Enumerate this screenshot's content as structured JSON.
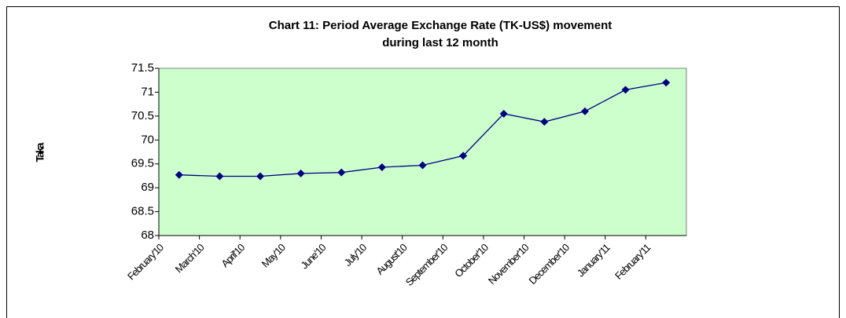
{
  "chart_data": {
    "type": "line",
    "title": [
      "Chart 11: Period Average Exchange Rate (TK-US$) movement",
      "during last 12 month"
    ],
    "y_label": "Taka",
    "categories": [
      "February'10",
      "March'10",
      "April'10",
      "May'10",
      "June'10",
      "July'10",
      "August'10",
      "September'10",
      "October'10",
      "November'10",
      "December'10",
      "January'11",
      "February'11"
    ],
    "series": [
      {
        "name": "Taka",
        "color": "#000080",
        "values": [
          69.27,
          69.24,
          69.24,
          69.3,
          69.32,
          69.43,
          69.47,
          69.67,
          70.55,
          70.38,
          70.6,
          71.05,
          71.2
        ]
      }
    ],
    "ylim": [
      68,
      71.5
    ],
    "yticks": [
      68,
      68.5,
      69,
      69.5,
      70,
      70.5,
      71,
      71.5
    ],
    "plot_background": "#ccffcc",
    "grid": false
  }
}
